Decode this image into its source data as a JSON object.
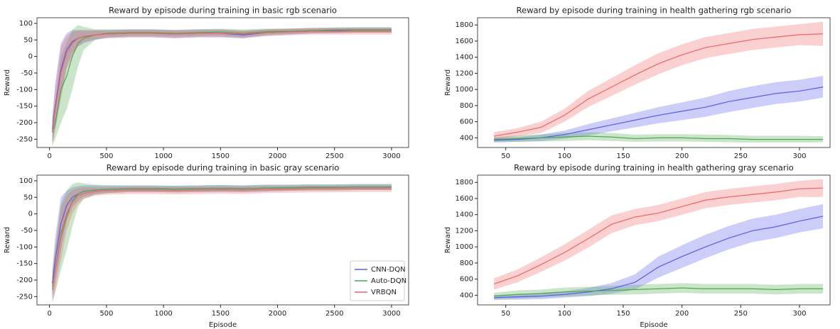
{
  "chart_data": [
    {
      "type": "line",
      "title": "Reward by episode during training in basic rgb scenario",
      "y_label": "Reward",
      "x": [
        25,
        50,
        100,
        150,
        200,
        250,
        300,
        400,
        500,
        700,
        900,
        1100,
        1300,
        1500,
        1700,
        1900,
        2100,
        2300,
        2500,
        2700,
        3000
      ],
      "xlim": [
        -110,
        3150
      ],
      "ylim": [
        -275,
        117
      ],
      "xticks": [
        0,
        500,
        1000,
        1500,
        2000,
        2500,
        3000
      ],
      "yticks": [
        -250,
        -200,
        -150,
        -100,
        -50,
        0,
        50,
        100
      ],
      "series": [
        {
          "name": "CNN-DQN",
          "color": "#5b5bea",
          "values": [
            -220,
            -150,
            -40,
            20,
            45,
            55,
            60,
            65,
            68,
            70,
            70,
            68,
            70,
            70,
            65,
            72,
            75,
            78,
            78,
            80,
            80
          ],
          "lower": [
            -260,
            -220,
            -120,
            -30,
            10,
            30,
            40,
            50,
            55,
            58,
            58,
            55,
            58,
            58,
            55,
            62,
            66,
            70,
            70,
            72,
            72
          ],
          "upper": [
            -180,
            -80,
            40,
            70,
            80,
            80,
            80,
            80,
            80,
            82,
            82,
            80,
            82,
            82,
            78,
            82,
            84,
            86,
            86,
            88,
            88
          ]
        },
        {
          "name": "Auto-DQN",
          "color": "#4fa84f",
          "values": [
            -230,
            -200,
            -100,
            -60,
            0,
            40,
            55,
            65,
            70,
            72,
            72,
            70,
            72,
            74,
            70,
            75,
            76,
            78,
            80,
            80,
            80
          ],
          "lower": [
            -270,
            -250,
            -200,
            -160,
            -100,
            -30,
            20,
            50,
            58,
            62,
            62,
            60,
            62,
            64,
            58,
            66,
            68,
            70,
            72,
            72,
            72
          ],
          "upper": [
            -190,
            -140,
            0,
            40,
            80,
            95,
            90,
            82,
            82,
            82,
            82,
            80,
            82,
            84,
            82,
            84,
            84,
            86,
            88,
            88,
            88
          ]
        },
        {
          "name": "VRBQN",
          "color": "#ee6464",
          "values": [
            -230,
            -160,
            -50,
            10,
            40,
            55,
            60,
            65,
            68,
            70,
            70,
            68,
            70,
            70,
            68,
            72,
            74,
            76,
            76,
            76,
            76
          ],
          "lower": [
            -270,
            -220,
            -130,
            -40,
            0,
            30,
            45,
            52,
            56,
            58,
            58,
            56,
            58,
            58,
            55,
            62,
            64,
            66,
            66,
            66,
            66
          ],
          "upper": [
            -190,
            -100,
            30,
            60,
            75,
            78,
            78,
            78,
            78,
            80,
            80,
            78,
            80,
            80,
            78,
            82,
            84,
            86,
            86,
            86,
            86
          ]
        }
      ]
    },
    {
      "type": "line",
      "title": "Reward by episode during training in health gathering rgb scenario",
      "y_label": "Reward",
      "x": [
        40,
        60,
        80,
        100,
        120,
        140,
        160,
        180,
        200,
        220,
        240,
        260,
        280,
        300,
        320
      ],
      "xlim": [
        26,
        326
      ],
      "ylim": [
        280,
        1890
      ],
      "xticks": [
        50,
        100,
        150,
        200,
        250,
        300
      ],
      "yticks": [
        400,
        600,
        800,
        1000,
        1200,
        1400,
        1600,
        1800
      ],
      "series": [
        {
          "name": "CNN-DQN",
          "color": "#5b5bea",
          "values": [
            370,
            380,
            400,
            440,
            500,
            560,
            620,
            680,
            730,
            780,
            850,
            900,
            950,
            980,
            1030
          ],
          "lower": [
            340,
            350,
            360,
            390,
            430,
            480,
            530,
            580,
            620,
            660,
            720,
            770,
            820,
            850,
            900
          ],
          "upper": [
            400,
            410,
            440,
            490,
            570,
            640,
            710,
            780,
            840,
            900,
            980,
            1040,
            1090,
            1120,
            1170
          ]
        },
        {
          "name": "Auto-DQN",
          "color": "#4fa84f",
          "values": [
            380,
            390,
            400,
            410,
            420,
            410,
            390,
            400,
            400,
            390,
            390,
            380,
            380,
            380,
            380
          ],
          "lower": [
            350,
            350,
            355,
            360,
            370,
            360,
            350,
            355,
            355,
            350,
            345,
            340,
            340,
            340,
            345
          ],
          "upper": [
            410,
            430,
            445,
            460,
            470,
            460,
            440,
            445,
            445,
            440,
            435,
            425,
            425,
            425,
            420
          ]
        },
        {
          "name": "VRBQN",
          "color": "#ee6464",
          "values": [
            420,
            470,
            530,
            680,
            880,
            1030,
            1180,
            1320,
            1430,
            1520,
            1570,
            1620,
            1650,
            1680,
            1690
          ],
          "lower": [
            380,
            420,
            460,
            600,
            780,
            920,
            1060,
            1190,
            1300,
            1390,
            1440,
            1490,
            1520,
            1550,
            1540
          ],
          "upper": [
            470,
            520,
            600,
            760,
            980,
            1140,
            1300,
            1450,
            1560,
            1650,
            1700,
            1750,
            1780,
            1810,
            1840
          ]
        }
      ]
    },
    {
      "type": "line",
      "title": "Reward by episode during training in basic gray scenario",
      "y_label": "Reward",
      "x_label": "Episode",
      "legend": "lower right",
      "x": [
        25,
        50,
        100,
        150,
        200,
        250,
        300,
        400,
        500,
        700,
        900,
        1100,
        1300,
        1500,
        1700,
        1900,
        2100,
        2300,
        2500,
        2700,
        3000
      ],
      "xlim": [
        -110,
        3150
      ],
      "ylim": [
        -275,
        117
      ],
      "xticks": [
        0,
        500,
        1000,
        1500,
        2000,
        2500,
        3000
      ],
      "yticks": [
        -250,
        -200,
        -150,
        -100,
        -50,
        0,
        50,
        100
      ],
      "series": [
        {
          "name": "CNN-DQN",
          "color": "#5b5bea",
          "values": [
            -210,
            -140,
            -30,
            25,
            50,
            60,
            68,
            72,
            74,
            76,
            76,
            75,
            76,
            77,
            76,
            78,
            79,
            80,
            80,
            81,
            81
          ],
          "lower": [
            -250,
            -210,
            -110,
            -20,
            20,
            40,
            52,
            60,
            63,
            66,
            66,
            65,
            66,
            67,
            66,
            68,
            70,
            71,
            71,
            72,
            72
          ],
          "upper": [
            -170,
            -70,
            50,
            70,
            80,
            84,
            86,
            86,
            86,
            86,
            86,
            85,
            86,
            87,
            86,
            88,
            88,
            89,
            89,
            90,
            90
          ]
        },
        {
          "name": "Auto-DQN",
          "color": "#4fa84f",
          "values": [
            -220,
            -170,
            -70,
            -10,
            40,
            60,
            68,
            72,
            74,
            76,
            76,
            75,
            76,
            77,
            76,
            78,
            79,
            80,
            80,
            81,
            81
          ],
          "lower": [
            -265,
            -240,
            -170,
            -110,
            -40,
            20,
            45,
            58,
            62,
            66,
            66,
            65,
            66,
            67,
            66,
            68,
            70,
            71,
            71,
            72,
            72
          ],
          "upper": [
            -175,
            -100,
            30,
            70,
            90,
            95,
            92,
            88,
            86,
            86,
            86,
            85,
            86,
            87,
            86,
            88,
            88,
            89,
            89,
            90,
            90
          ]
        },
        {
          "name": "VRBQN",
          "color": "#ee6464",
          "values": [
            -230,
            -170,
            -60,
            0,
            35,
            55,
            62,
            68,
            70,
            72,
            72,
            71,
            72,
            73,
            72,
            74,
            75,
            76,
            76,
            77,
            77
          ],
          "lower": [
            -270,
            -230,
            -140,
            -50,
            0,
            30,
            45,
            55,
            58,
            60,
            60,
            59,
            60,
            61,
            60,
            63,
            64,
            65,
            65,
            66,
            66
          ],
          "upper": [
            -190,
            -110,
            20,
            55,
            72,
            78,
            80,
            80,
            80,
            82,
            82,
            81,
            82,
            83,
            82,
            84,
            84,
            85,
            85,
            86,
            86
          ]
        }
      ]
    },
    {
      "type": "line",
      "title": "Reward by episode during training in health gathering gray scenario",
      "y_label": "Reward",
      "x_label": "Episode",
      "x": [
        40,
        60,
        80,
        100,
        120,
        140,
        160,
        180,
        200,
        220,
        240,
        260,
        280,
        300,
        320
      ],
      "xlim": [
        26,
        326
      ],
      "ylim": [
        280,
        1890
      ],
      "xticks": [
        50,
        100,
        150,
        200,
        250,
        300
      ],
      "yticks": [
        400,
        600,
        800,
        1000,
        1200,
        1400,
        1600,
        1800
      ],
      "series": [
        {
          "name": "CNN-DQN",
          "color": "#5b5bea",
          "values": [
            370,
            380,
            390,
            410,
            440,
            480,
            560,
            750,
            880,
            1000,
            1110,
            1200,
            1250,
            1320,
            1380
          ],
          "lower": [
            340,
            345,
            350,
            370,
            390,
            420,
            470,
            620,
            740,
            860,
            970,
            1060,
            1110,
            1180,
            1230
          ],
          "upper": [
            400,
            415,
            430,
            450,
            490,
            550,
            660,
            880,
            1020,
            1150,
            1260,
            1350,
            1400,
            1470,
            1530
          ]
        },
        {
          "name": "Auto-DQN",
          "color": "#4fa84f",
          "values": [
            390,
            410,
            420,
            440,
            450,
            460,
            470,
            480,
            490,
            480,
            480,
            480,
            470,
            480,
            480
          ],
          "lower": [
            350,
            360,
            370,
            385,
            395,
            405,
            410,
            420,
            430,
            420,
            420,
            420,
            410,
            420,
            420
          ],
          "upper": [
            430,
            460,
            470,
            495,
            505,
            515,
            530,
            540,
            550,
            540,
            540,
            540,
            530,
            540,
            540
          ]
        },
        {
          "name": "VRBQN",
          "color": "#ee6464",
          "values": [
            540,
            640,
            780,
            930,
            1100,
            1280,
            1370,
            1420,
            1500,
            1580,
            1620,
            1650,
            1680,
            1720,
            1730
          ],
          "lower": [
            470,
            560,
            690,
            830,
            990,
            1170,
            1270,
            1320,
            1400,
            1480,
            1520,
            1550,
            1580,
            1620,
            1620
          ],
          "upper": [
            610,
            720,
            870,
            1030,
            1210,
            1390,
            1470,
            1520,
            1600,
            1680,
            1720,
            1750,
            1780,
            1820,
            1840
          ]
        }
      ]
    }
  ]
}
